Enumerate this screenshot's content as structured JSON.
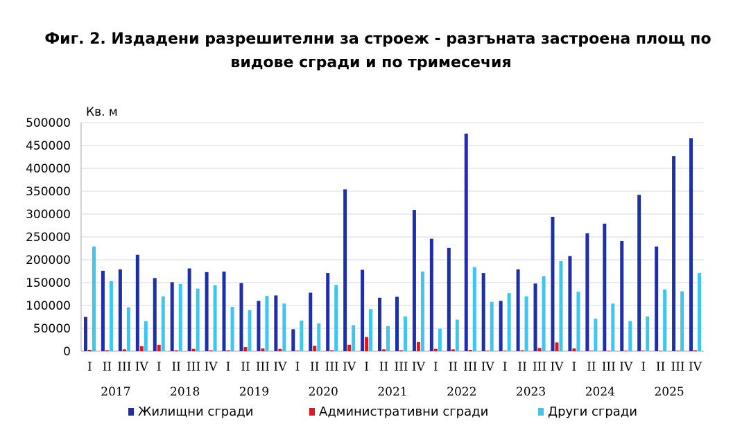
{
  "chart_data": {
    "type": "bar",
    "title": "Фиг. 2. Издадени разрешителни за строеж - разгъната застроена площ по видове сгради и по тримесечия",
    "title_lines": [
      "Фиг. 2. Издадени разрешителни за строеж - разгъната застроена площ по",
      "видове сгради и по тримесечия"
    ],
    "ylabel": "Кв. м",
    "ylim": [
      0,
      500000
    ],
    "yticks": [
      "0",
      "50000",
      "100000",
      "150000",
      "200000",
      "250000",
      "300000",
      "350000",
      "400000",
      "450000",
      "500000"
    ],
    "grid": true,
    "legend_position": "bottom",
    "years": [
      "2017",
      "2018",
      "2019",
      "2020",
      "2021",
      "2022",
      "2023",
      "2024",
      "2025"
    ],
    "quarters": [
      "I",
      "II",
      "III",
      "IV"
    ],
    "series": [
      {
        "name": "Жилищни сгради",
        "color": "#1f2fa8",
        "values": [
          75000,
          176000,
          179000,
          211000,
          160000,
          151000,
          181000,
          173000,
          174000,
          149000,
          110000,
          122000,
          48000,
          128000,
          171000,
          354000,
          178000,
          117000,
          119000,
          309000,
          246000,
          226000,
          476000,
          171000,
          110000,
          179000,
          148000,
          294000,
          208000,
          258000,
          279000,
          241000,
          342000,
          229000,
          427000,
          466000
        ]
      },
      {
        "name": "Административни сгради",
        "color": "#e8141c",
        "values": [
          3000,
          2000,
          4000,
          11000,
          14000,
          2000,
          5000,
          2000,
          2000,
          9000,
          6000,
          5000,
          1000,
          12000,
          2000,
          14000,
          31000,
          4000,
          2000,
          20000,
          5000,
          4000,
          3000,
          1000,
          1000,
          2000,
          7000,
          19000,
          6000,
          1000,
          1000,
          1000,
          1000,
          1000,
          1000,
          2000
        ]
      },
      {
        "name": "Други сгради",
        "color": "#3ec6ee",
        "values": [
          229000,
          153000,
          96000,
          66000,
          120000,
          147000,
          137000,
          144000,
          97000,
          90000,
          121000,
          104000,
          67000,
          61000,
          145000,
          57000,
          92000,
          55000,
          76000,
          174000,
          49000,
          69000,
          184000,
          108000,
          127000,
          120000,
          164000,
          197000,
          130000,
          71000,
          104000,
          66000,
          76000,
          135000,
          131000,
          171000
        ]
      }
    ]
  }
}
